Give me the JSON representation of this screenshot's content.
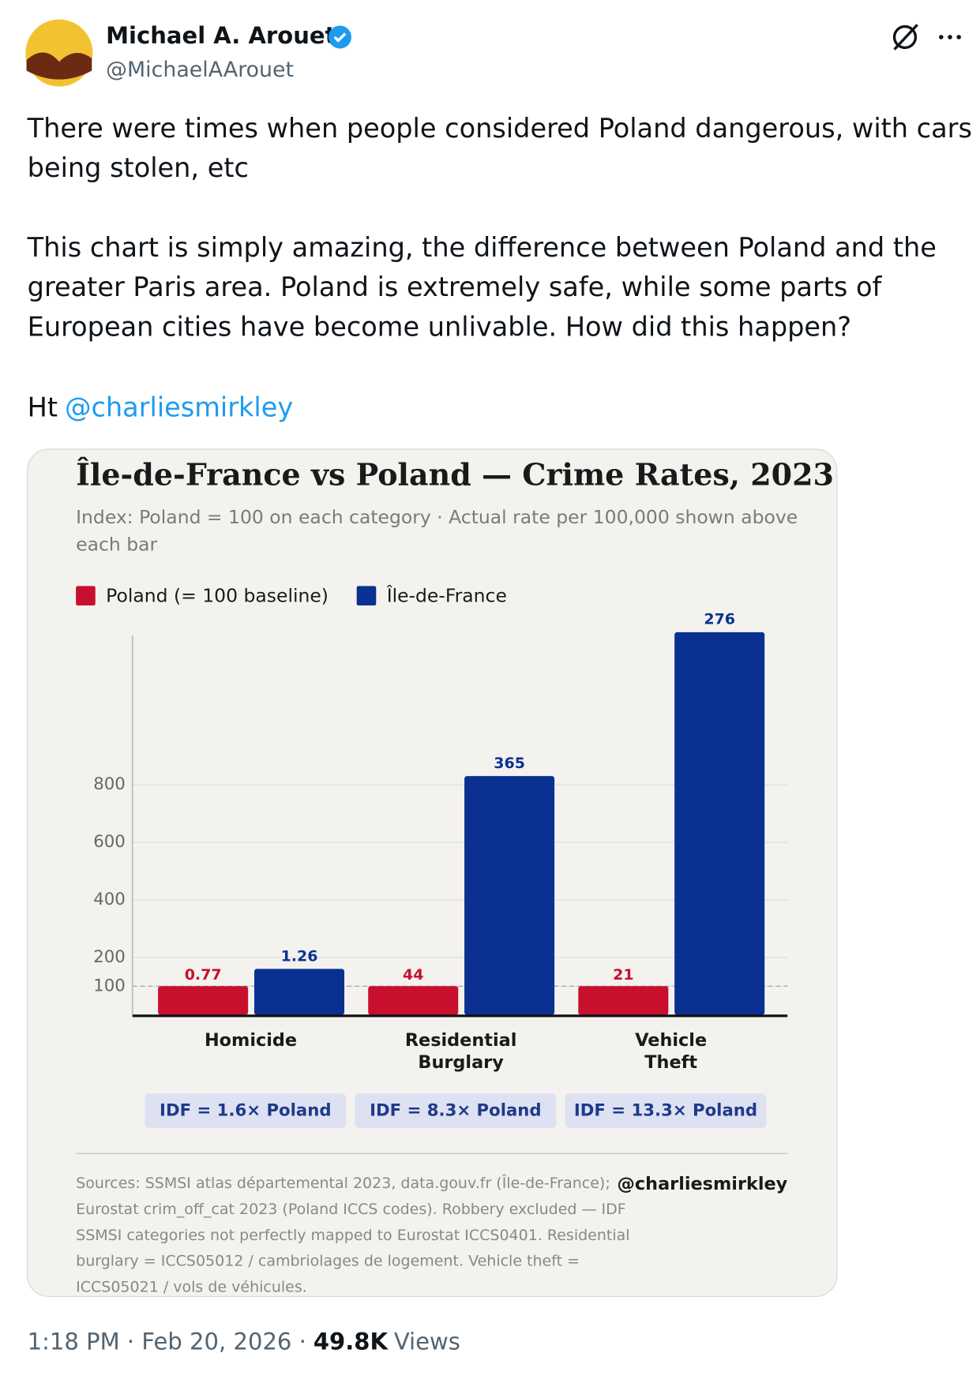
{
  "tweet": {
    "author": "Michael A. Arouet",
    "handle": "@MichaelAArouet",
    "text_lines": [
      "There were times when people considered Poland dangerous, with cars",
      "being stolen, etc",
      "This chart is simply amazing, the difference between Poland and the",
      "greater Paris area. Poland is extremely safe, while some parts of",
      "European cities have become unlivable. How did this happen?"
    ],
    "ht": "Ht",
    "mention": "@charliesmirkley",
    "time": "1:18 PM · Feb 20, 2026 ·",
    "views": "49.8K",
    "views_label": "Views"
  },
  "chart_data": {
    "type": "bar",
    "title": "Île-de-France vs Poland — Crime Rates, 2023",
    "subtitle_lines": [
      "Index: Poland = 100 on each category  ·  Actual rate per 100,000 shown above",
      "each bar"
    ],
    "categories": [
      "Homicide",
      "Residential Burglary",
      "Vehicle Theft"
    ],
    "series": [
      {
        "name": "Poland (= 100 baseline)",
        "color": "#c8102e",
        "values": [
          100,
          100,
          100
        ],
        "rates": [
          0.77,
          44,
          21
        ]
      },
      {
        "name": "Île-de-France",
        "color": "#0a3191",
        "values": [
          160,
          830,
          1330
        ],
        "rates": [
          1.26,
          365,
          276
        ]
      }
    ],
    "ylim": [
      0,
      1340
    ],
    "yticks": [
      100,
      200,
      400,
      600,
      800
    ],
    "grid": true,
    "reference_line": 100,
    "annotations": [
      "IDF = 1.6× Poland",
      "IDF = 8.3× Poland",
      "IDF = 13.3× Poland"
    ],
    "source_lines": [
      "Sources: SSMSI atlas départemental 2023, data.gouv.fr (Île-de-France);",
      "Eurostat crim_off_cat 2023 (Poland ICCS codes). Robbery excluded — IDF",
      "SSMSI categories not perfectly mapped to Eurostat ICCS0401. Residential",
      "burglary = ICCS05012 / cambriolages de logement. Vehicle theft =",
      "ICCS05021 / vols de véhicules."
    ],
    "credit": "@charliesmirkley"
  }
}
